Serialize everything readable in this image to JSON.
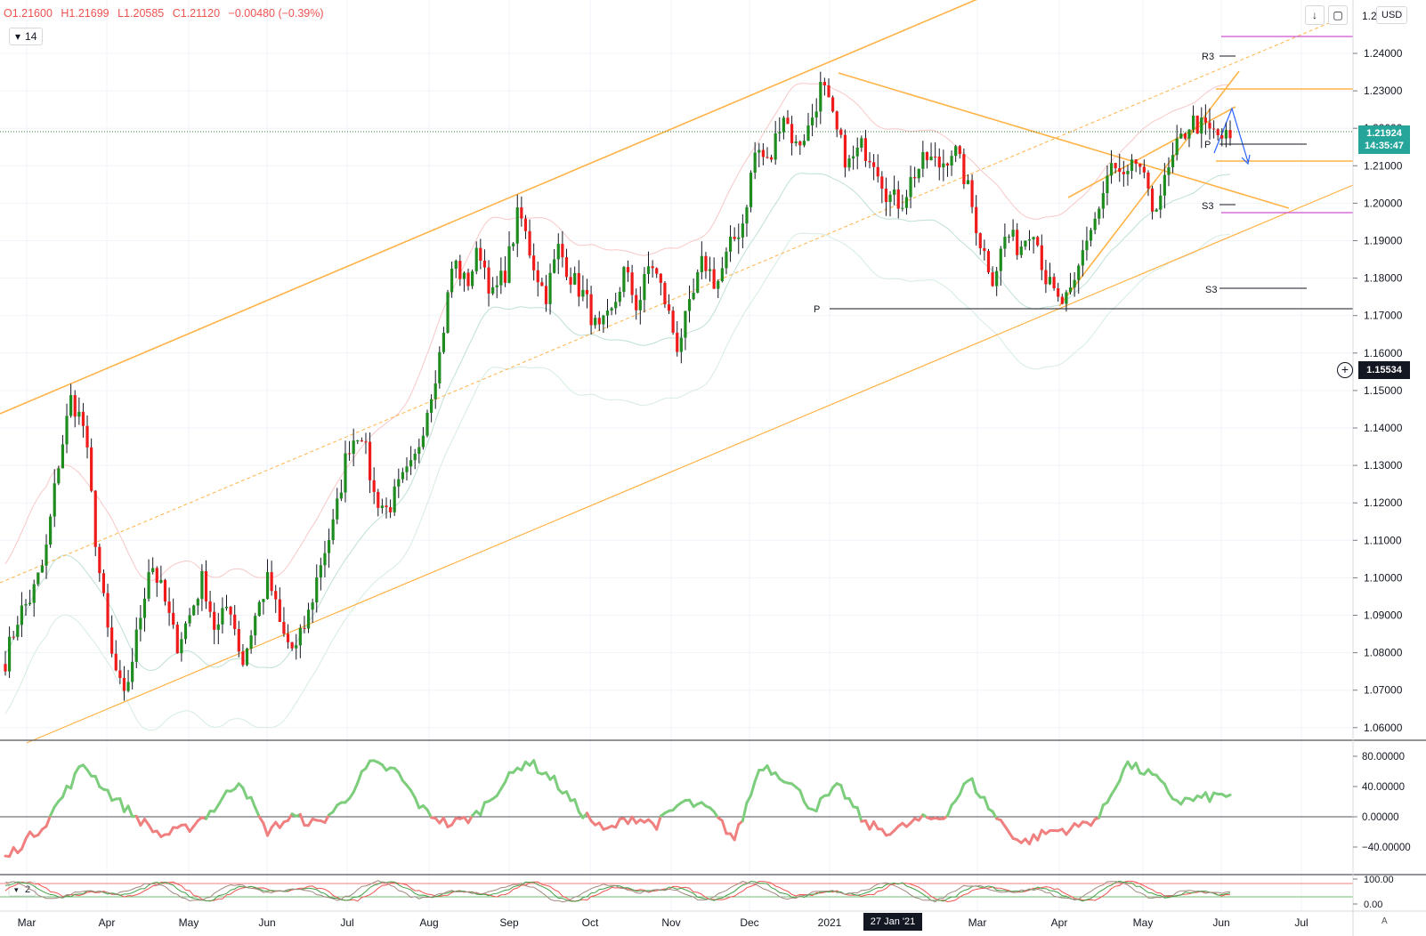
{
  "header": {
    "open": "O1.21600",
    "high": "H1.21699",
    "low": "L1.20585",
    "close": "C1.21120",
    "change": "−0.00480 (−0.39%)",
    "indicator_value": "14"
  },
  "toolbar": {
    "currency": "USD",
    "auto_label": "A"
  },
  "price_scale": {
    "current_price": "1.21924",
    "countdown": "14:35:47",
    "crosshair_price": "1.15534",
    "crosshair_date": "27 Jan '21",
    "top_clipped_label": "1.2",
    "ticks": [
      "1.24000",
      "1.23000",
      "1.22000",
      "1.21000",
      "1.20000",
      "1.19000",
      "1.18000",
      "1.17000",
      "1.16000",
      "1.15000",
      "1.14000",
      "1.13000",
      "1.12000",
      "1.11000",
      "1.10000",
      "1.09000",
      "1.08000",
      "1.07000",
      "1.06000"
    ]
  },
  "pivot_labels": {
    "r3": "R3",
    "s3_upper": "S3",
    "s3_lower": "S3",
    "p_upper": "P",
    "p_lower": "P"
  },
  "colors": {
    "bull": "#1e8c1e",
    "bear": "#ef1a1a",
    "trendline": "#ffb347",
    "osc_pos": "#7ccd7c",
    "osc_neg": "#f08080",
    "magenta": "#d050d0",
    "current_price": "#26a69a",
    "dotted_line": "#2e7d32"
  },
  "chart_data": [
    {
      "type": "candlestick",
      "title": "",
      "y_range": [
        1.055,
        1.255
      ],
      "x_labels": [
        "Mar",
        "Apr",
        "May",
        "Jun",
        "Jul",
        "Aug",
        "Sep",
        "Oct",
        "Nov",
        "Dec",
        "2021",
        "Mar",
        "Apr",
        "May",
        "Jun",
        "Jul"
      ],
      "key_levels": {
        "open": 1.216,
        "high": 1.21699,
        "low": 1.20585,
        "close": 1.2112,
        "current": 1.21924
      },
      "path_anchors": [
        [
          0,
          1.078
        ],
        [
          1,
          1.09
        ],
        [
          2,
          1.095
        ],
        [
          3,
          1.105
        ],
        [
          4,
          1.13
        ],
        [
          5,
          1.148
        ],
        [
          6,
          1.14
        ],
        [
          7,
          1.105
        ],
        [
          8,
          1.08
        ],
        [
          9,
          1.067
        ],
        [
          10,
          1.085
        ],
        [
          11,
          1.105
        ],
        [
          12,
          1.095
        ],
        [
          13,
          1.082
        ],
        [
          14,
          1.09
        ],
        [
          15,
          1.1
        ],
        [
          16,
          1.085
        ],
        [
          17,
          1.094
        ],
        [
          18,
          1.077
        ],
        [
          19,
          1.09
        ],
        [
          20,
          1.1
        ],
        [
          21,
          1.085
        ],
        [
          22,
          1.08
        ],
        [
          23,
          1.09
        ],
        [
          24,
          1.105
        ],
        [
          25,
          1.115
        ],
        [
          26,
          1.135
        ],
        [
          27,
          1.14
        ],
        [
          28,
          1.122
        ],
        [
          29,
          1.118
        ],
        [
          30,
          1.125
        ],
        [
          31,
          1.13
        ],
        [
          32,
          1.145
        ],
        [
          33,
          1.16
        ],
        [
          34,
          1.185
        ],
        [
          35,
          1.178
        ],
        [
          36,
          1.188
        ],
        [
          37,
          1.175
        ],
        [
          38,
          1.182
        ],
        [
          39,
          1.198
        ],
        [
          40,
          1.185
        ],
        [
          41,
          1.175
        ],
        [
          42,
          1.188
        ],
        [
          43,
          1.18
        ],
        [
          44,
          1.175
        ],
        [
          45,
          1.165
        ],
        [
          46,
          1.17
        ],
        [
          47,
          1.182
        ],
        [
          48,
          1.172
        ],
        [
          49,
          1.185
        ],
        [
          50,
          1.175
        ],
        [
          51,
          1.162
        ],
        [
          52,
          1.172
        ],
        [
          53,
          1.185
        ],
        [
          54,
          1.178
        ],
        [
          55,
          1.188
        ],
        [
          56,
          1.195
        ],
        [
          57,
          1.215
        ],
        [
          58,
          1.21
        ],
        [
          59,
          1.225
        ],
        [
          60,
          1.215
        ],
        [
          61,
          1.22
        ],
        [
          62,
          1.232
        ],
        [
          63,
          1.22
        ],
        [
          64,
          1.21
        ],
        [
          65,
          1.215
        ],
        [
          66,
          1.212
        ],
        [
          67,
          1.202
        ],
        [
          68,
          1.2
        ],
        [
          69,
          1.208
        ],
        [
          70,
          1.212
        ],
        [
          71,
          1.21
        ],
        [
          72,
          1.215
        ],
        [
          73,
          1.205
        ],
        [
          74,
          1.19
        ],
        [
          75,
          1.18
        ],
        [
          76,
          1.192
        ],
        [
          77,
          1.188
        ],
        [
          78,
          1.195
        ],
        [
          79,
          1.18
        ],
        [
          80,
          1.173
        ],
        [
          81,
          1.175
        ],
        [
          82,
          1.19
        ],
        [
          83,
          1.198
        ],
        [
          84,
          1.21
        ],
        [
          85,
          1.205
        ],
        [
          86,
          1.212
        ],
        [
          87,
          1.198
        ],
        [
          88,
          1.205
        ],
        [
          89,
          1.215
        ],
        [
          90,
          1.222
        ],
        [
          91,
          1.22
        ],
        [
          92,
          1.218
        ],
        [
          93,
          1.217
        ]
      ],
      "trendlines": [
        {
          "name": "",
          "from": [
            "Feb '20",
            1.145
          ],
          "to": [
            "Dec '20",
            1.235
          ]
        },
        {
          "name": "",
          "from": [
            "Feb '20",
            1.06
          ],
          "to": [
            "Jul '21",
            1.203
          ]
        },
        {
          "name": "",
          "from": [
            "Jan '21",
            1.235
          ],
          "to": [
            "Jun '21",
            1.198
          ]
        }
      ],
      "pivot_levels": [
        {
          "label": "R3",
          "value": 1.2395
        },
        {
          "label": "P",
          "value": 1.2155
        },
        {
          "label": "S3",
          "value": 1.199
        },
        {
          "label": "S3",
          "value": 1.177
        },
        {
          "label": "P",
          "value": 1.172
        }
      ]
    },
    {
      "type": "line",
      "title": "",
      "y_range": [
        -60,
        100
      ],
      "y_ticks": [
        "80.00000",
        "40.00000",
        "0.00000",
        "−40.00000"
      ],
      "path_anchors": [
        [
          0,
          -55
        ],
        [
          3,
          -10
        ],
        [
          6,
          70
        ],
        [
          8,
          30
        ],
        [
          10,
          0
        ],
        [
          12,
          -25
        ],
        [
          14,
          -15
        ],
        [
          16,
          10
        ],
        [
          18,
          50
        ],
        [
          20,
          -20
        ],
        [
          22,
          0
        ],
        [
          24,
          -10
        ],
        [
          26,
          20
        ],
        [
          28,
          70
        ],
        [
          30,
          60
        ],
        [
          32,
          10
        ],
        [
          34,
          -10
        ],
        [
          36,
          0
        ],
        [
          38,
          40
        ],
        [
          40,
          75
        ],
        [
          42,
          50
        ],
        [
          44,
          10
        ],
        [
          46,
          -20
        ],
        [
          48,
          0
        ],
        [
          50,
          -10
        ],
        [
          52,
          20
        ],
        [
          54,
          10
        ],
        [
          56,
          -30
        ],
        [
          58,
          70
        ],
        [
          60,
          50
        ],
        [
          62,
          10
        ],
        [
          64,
          40
        ],
        [
          66,
          -10
        ],
        [
          68,
          -20
        ],
        [
          70,
          -5
        ],
        [
          72,
          0
        ],
        [
          74,
          50
        ],
        [
          76,
          0
        ],
        [
          78,
          -35
        ],
        [
          80,
          -20
        ],
        [
          82,
          -15
        ],
        [
          84,
          0
        ],
        [
          86,
          70
        ],
        [
          88,
          55
        ],
        [
          90,
          20
        ],
        [
          92,
          25
        ],
        [
          94,
          30
        ]
      ]
    },
    {
      "type": "line",
      "title": "",
      "y_range": [
        0,
        100
      ],
      "y_ticks": [
        "100.00",
        "0.00"
      ],
      "legend": [
        "2"
      ]
    }
  ]
}
